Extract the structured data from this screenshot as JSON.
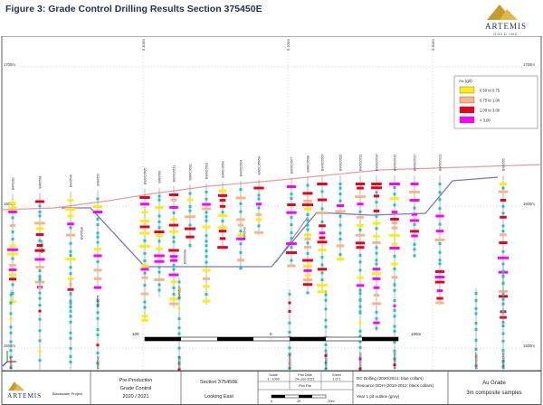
{
  "figure_title": "Figure 3: Grade Control Drilling Results Section 375450E",
  "logo": {
    "name": "ARTEMIS",
    "sub": "GOLD INC"
  },
  "elevations": {
    "top_left": "1700m",
    "top_right": "1700m",
    "mid_left": "1600m",
    "mid_right": "1600m",
    "low_left": "1500m",
    "low_right": "1500m"
  },
  "northings": [
    "5,000N",
    "5,100N",
    "5,200N",
    "5,300N",
    "5,400N"
  ],
  "legend": {
    "title": "Au (g/t)",
    "items": [
      {
        "label": "0.50 to 0.75",
        "color": "#ffee00"
      },
      {
        "label": "0.75 to 1.00",
        "color": "#f7b58a"
      },
      {
        "label": "1.00 to 3.00",
        "color": "#e8001f"
      },
      {
        "label": "> 3.00",
        "color": "#ff00ff"
      }
    ]
  },
  "holes_upper": [
    "BW0282",
    "BW0508",
    "BW0546",
    "BW0552",
    "BW0C0505",
    "BW0506",
    "BW0C0511",
    "BW0C0501",
    "BW0C0502",
    "BW0C0503",
    "BW0C0504",
    "BW0C0505A",
    "BW0C0507",
    "BW0C0508",
    "BW0C0509",
    "BW0C0510",
    "BW0C0513",
    "BW0C0514",
    "BW0C0515",
    "BW0C0517",
    "BW0C0521",
    "BW0353"
  ],
  "holes_mid": [
    "BW0539",
    "BW0538",
    "BW0539A",
    "BW0540",
    "BW0571",
    "BW0537"
  ],
  "holes_lower": [
    "BW0471",
    "BW0543",
    "BW0630",
    "BW0S0501",
    "BW0S0502",
    "BW0S0503",
    "BW0S0505",
    "BW0S0507",
    "BW0S0509"
  ],
  "scale_bar": {
    "left": "100",
    "mid": "0",
    "right": "100m"
  },
  "title_block": {
    "company": "ARTEMIS",
    "project": "Blackwater Project",
    "doc_title": "Pre-Production Grade Control 2020 / 2021",
    "section": "Section 375450E",
    "looking": "Looking East",
    "scale_label": "Scale",
    "scale_value": "1 : 1000",
    "plot_date_label": "Plot Date",
    "plot_date_value": "04-Jun-2021",
    "sheet_label": "Sheet",
    "sheet_value": "1 of 1",
    "plot_file_label": "Plot File",
    "bar_start": "0",
    "bar_mid": "20",
    "bar_end": "20m",
    "notes": [
      "RC Drilling (2020/2021: blue collars)",
      "Resource DDH (2010-2012: black collars)",
      "Year 1 pit outline (grey)"
    ],
    "au_title": "Au Grade",
    "au_sub": "3m composite samples"
  }
}
